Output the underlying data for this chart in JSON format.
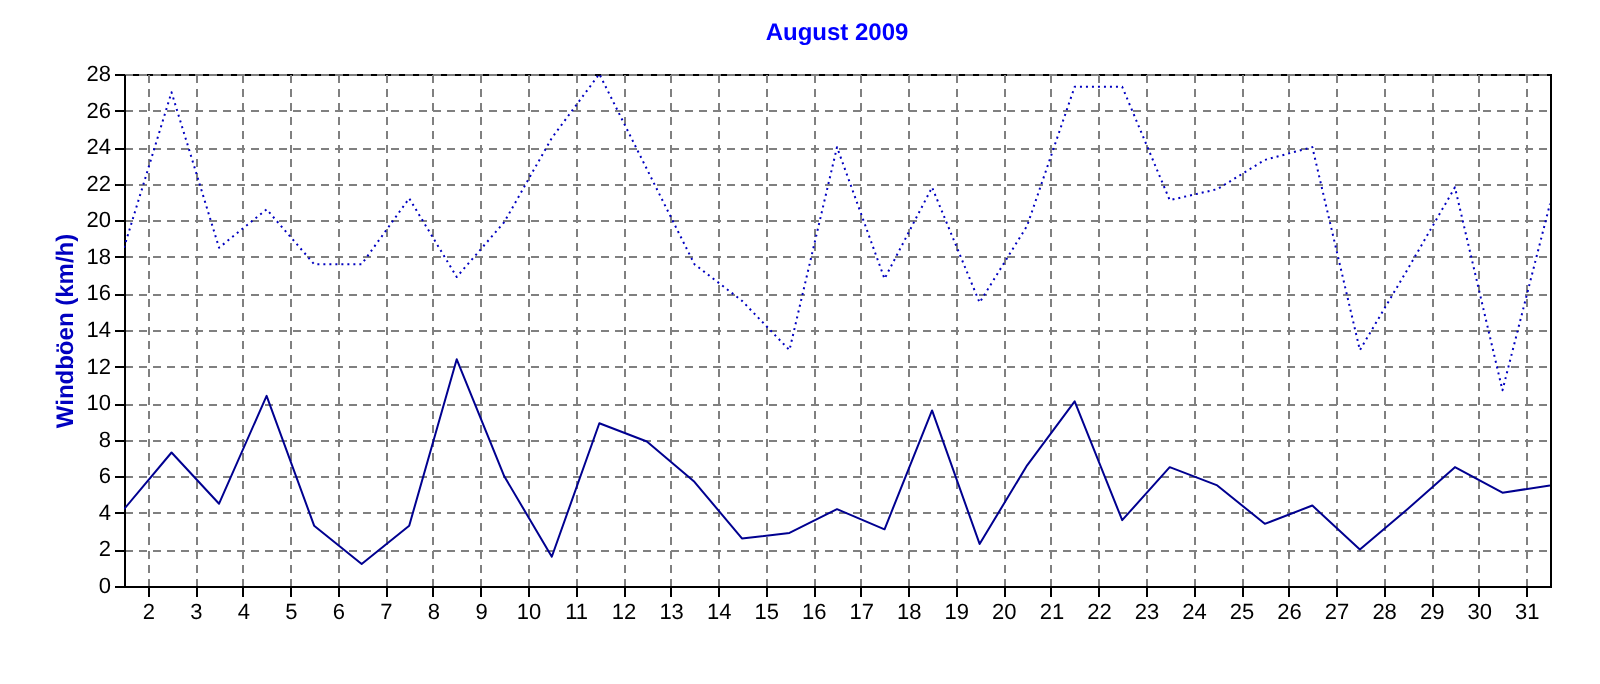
{
  "chart_data": {
    "type": "line",
    "title": "August 2009",
    "ylabel": "Windböen  (km/h)",
    "x": [
      1.5,
      2.5,
      3.5,
      4.5,
      5.5,
      6.5,
      7.5,
      8.5,
      9.5,
      10.5,
      11.5,
      12.5,
      13.5,
      14.5,
      15.5,
      16.5,
      17.5,
      18.5,
      19.5,
      20.5,
      21.5,
      22.5,
      23.5,
      24.5,
      25.5,
      26.5,
      27.5,
      28.5,
      29.5,
      30.5,
      31.5
    ],
    "series": [
      {
        "color": "#0000c0",
        "line_style": "dotted",
        "values": [
          18.5,
          27.0,
          18.5,
          20.6,
          17.6,
          17.6,
          21.2,
          16.9,
          19.9,
          24.5,
          28.0,
          22.8,
          17.6,
          15.6,
          12.9,
          24.0,
          16.8,
          21.8,
          15.5,
          19.7,
          27.3,
          27.3,
          21.1,
          21.7,
          23.3,
          24.0,
          12.9,
          17.3,
          21.8,
          10.7,
          20.9
        ]
      },
      {
        "color": "#000090",
        "line_style": "solid",
        "values": [
          4.2,
          7.3,
          4.5,
          10.4,
          3.3,
          1.2,
          3.3,
          12.4,
          6.0,
          1.6,
          8.9,
          7.9,
          5.7,
          2.6,
          2.9,
          4.2,
          3.1,
          9.6,
          2.3,
          6.6,
          10.1,
          3.6,
          6.5,
          5.5,
          3.4,
          4.4,
          2.0,
          4.2,
          6.5,
          5.1,
          5.5
        ]
      }
    ],
    "xlim": [
      1.5,
      31.5
    ],
    "xticks": [
      2,
      3,
      4,
      5,
      6,
      7,
      8,
      9,
      10,
      11,
      12,
      13,
      14,
      15,
      16,
      17,
      18,
      19,
      20,
      21,
      22,
      23,
      24,
      25,
      26,
      27,
      28,
      29,
      30,
      31
    ],
    "ylim": [
      0,
      28
    ],
    "yticks": [
      0,
      2,
      4,
      6,
      8,
      10,
      12,
      14,
      16,
      18,
      20,
      22,
      24,
      26,
      28
    ],
    "grid": true
  }
}
